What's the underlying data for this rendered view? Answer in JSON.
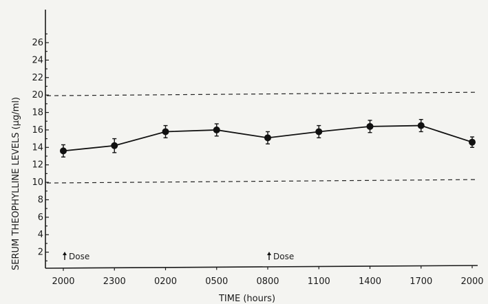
{
  "chart_data": {
    "type": "line",
    "xlabel": "TIME (hours)",
    "ylabel": "SERUM THEOPHYLLINE LEVELS (µg/ml)",
    "categories": [
      "2000",
      "2300",
      "0200",
      "0500",
      "0800",
      "1100",
      "1400",
      "1700",
      "2000"
    ],
    "series": [
      {
        "values": [
          13.6,
          14.2,
          15.8,
          16.0,
          15.1,
          15.8,
          16.4,
          16.5,
          14.6
        ],
        "errors": [
          0.7,
          0.8,
          0.7,
          0.7,
          0.7,
          0.7,
          0.7,
          0.7,
          0.6
        ]
      }
    ],
    "y_ticks": [
      2,
      4,
      6,
      8,
      10,
      12,
      14,
      16,
      18,
      20,
      22,
      24,
      26
    ],
    "ylim": [
      0,
      29
    ],
    "reference_lines": [
      10,
      20
    ],
    "annotations": [
      {
        "text": "Dose",
        "category_index": 0
      },
      {
        "text": "Dose",
        "category_index": 4
      }
    ],
    "grid": false,
    "legend": "none"
  }
}
